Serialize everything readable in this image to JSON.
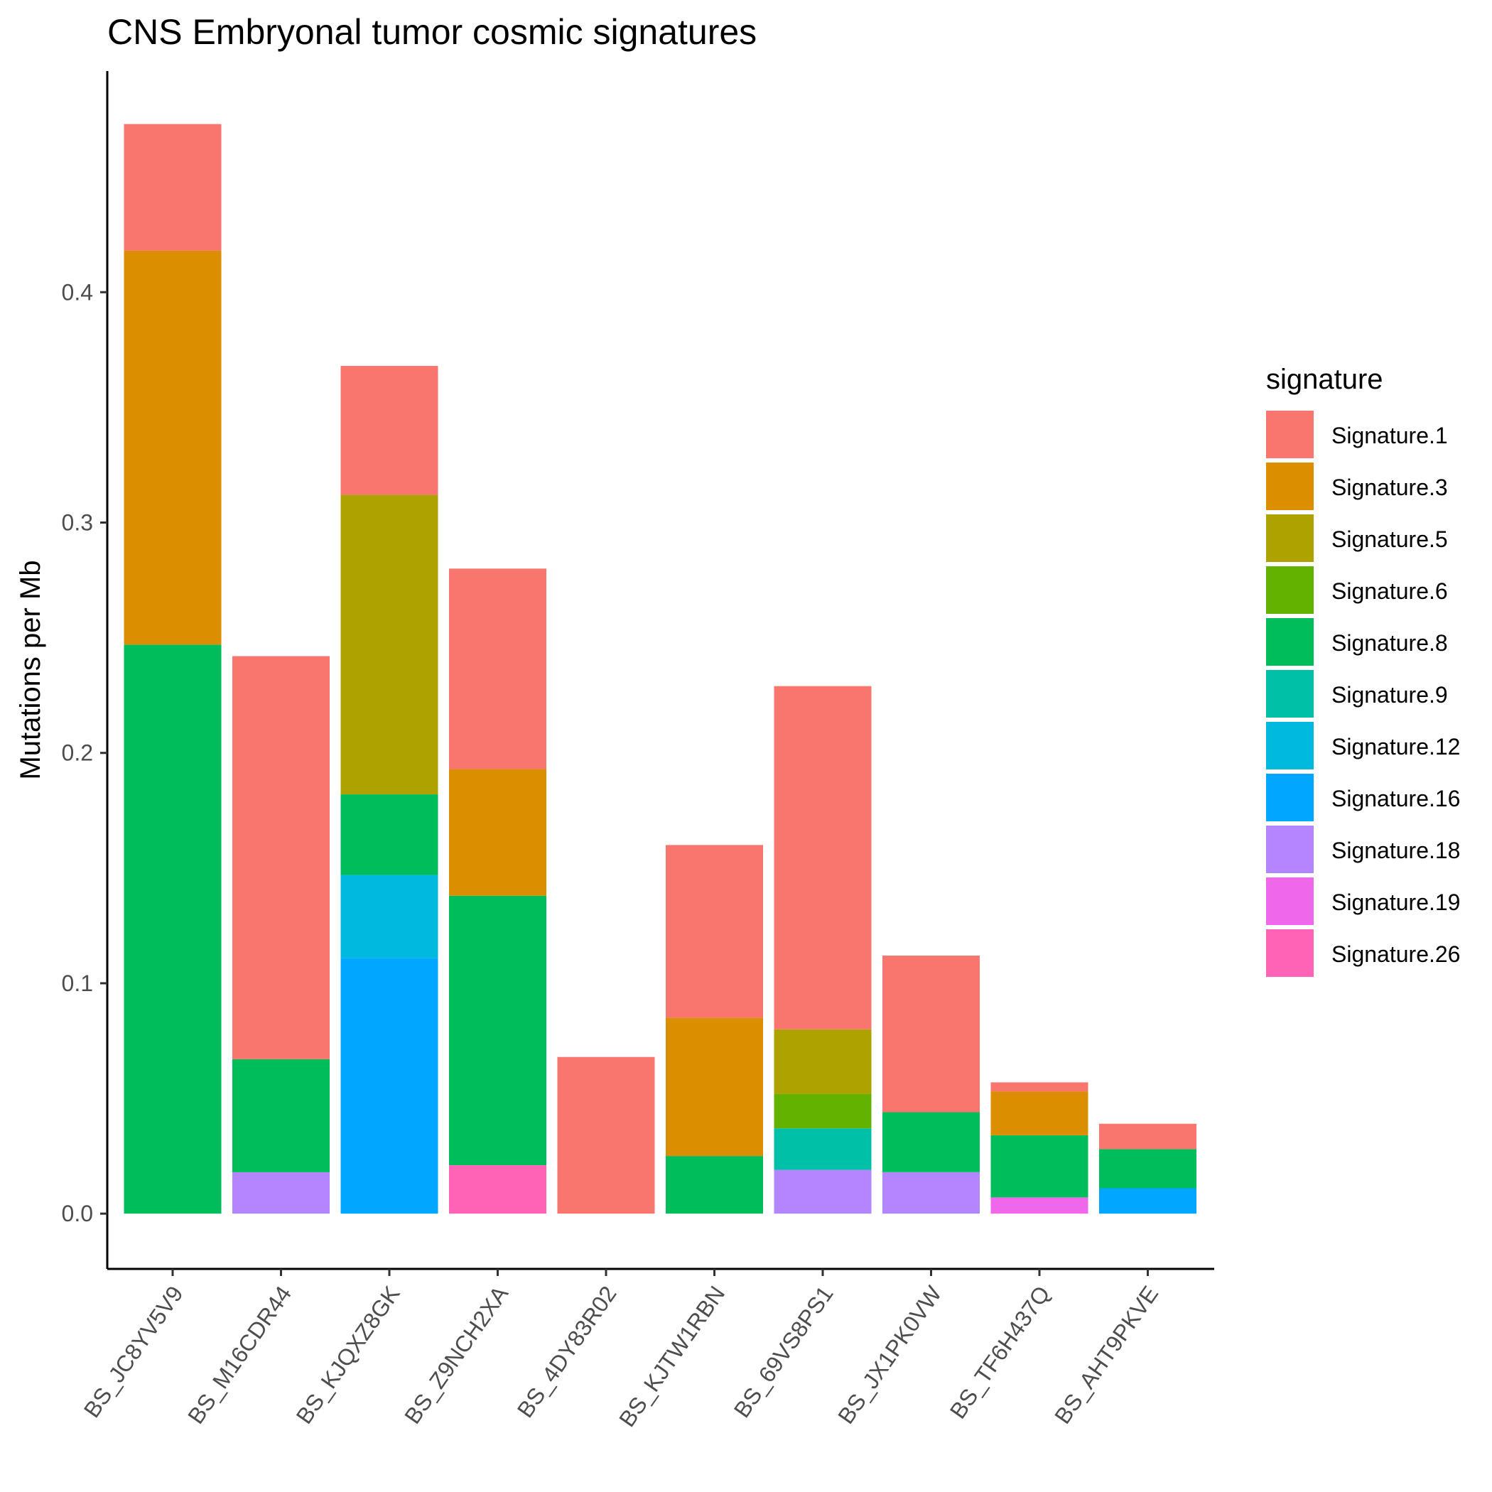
{
  "chart_data": {
    "type": "bar",
    "stacked": true,
    "title": "CNS Embryonal tumor cosmic signatures",
    "xlabel": "",
    "ylabel": "Mutations per Mb",
    "ylim": [
      -0.024,
      0.496
    ],
    "yticks": [
      "0.0",
      "0.1",
      "0.2",
      "0.3",
      "0.4"
    ],
    "ytick_values": [
      0.0,
      0.1,
      0.2,
      0.3,
      0.4
    ],
    "grid": false,
    "legend": {
      "title": "signature",
      "position": "right"
    },
    "categories": [
      "BS_JC8YV5V9",
      "BS_M16CDR44",
      "BS_KJQXZ8GK",
      "BS_Z9NCH2XA",
      "BS_4DY83R02",
      "BS_KJTW1RBN",
      "BS_69VS8PS1",
      "BS_JX1PK0VW",
      "BS_TF6H437Q",
      "BS_AHT9PKVE"
    ],
    "stack_order": [
      "Signature.19",
      "Signature.18",
      "Signature.26",
      "Signature.16",
      "Signature.12",
      "Signature.9",
      "Signature.6",
      "Signature.8",
      "Signature.5",
      "Signature.3",
      "Signature.1"
    ],
    "series": [
      {
        "name": "Signature.1",
        "color": "#F8766D",
        "values": [
          0.055,
          0.175,
          0.056,
          0.087,
          0.068,
          0.075,
          0.149,
          0.068,
          0.004,
          0.011
        ]
      },
      {
        "name": "Signature.3",
        "color": "#DB8E00",
        "values": [
          0.171,
          0,
          0,
          0.055,
          0,
          0.06,
          0,
          0,
          0.019,
          0
        ]
      },
      {
        "name": "Signature.5",
        "color": "#AEA200",
        "values": [
          0,
          0,
          0.13,
          0,
          0,
          0,
          0.028,
          0,
          0,
          0
        ]
      },
      {
        "name": "Signature.6",
        "color": "#64B200",
        "values": [
          0,
          0,
          0,
          0,
          0,
          0,
          0.015,
          0,
          0,
          0
        ]
      },
      {
        "name": "Signature.8",
        "color": "#00BD5C",
        "values": [
          0.247,
          0.049,
          0.035,
          0.117,
          0,
          0.025,
          0,
          0.026,
          0.027,
          0.017
        ]
      },
      {
        "name": "Signature.9",
        "color": "#00C1A7",
        "values": [
          0,
          0,
          0,
          0,
          0,
          0,
          0.018,
          0,
          0,
          0
        ]
      },
      {
        "name": "Signature.12",
        "color": "#00BADE",
        "values": [
          0,
          0,
          0.036,
          0,
          0,
          0,
          0,
          0,
          0,
          0
        ]
      },
      {
        "name": "Signature.16",
        "color": "#00A6FF",
        "values": [
          0,
          0,
          0.111,
          0,
          0,
          0,
          0,
          0,
          0,
          0.011
        ]
      },
      {
        "name": "Signature.18",
        "color": "#B385FF",
        "values": [
          0,
          0.018,
          0,
          0,
          0,
          0,
          0.019,
          0.018,
          0,
          0
        ]
      },
      {
        "name": "Signature.19",
        "color": "#EF67EB",
        "values": [
          0,
          0,
          0,
          0,
          0,
          0,
          0,
          0,
          0.007,
          0
        ]
      },
      {
        "name": "Signature.26",
        "color": "#FF63B6",
        "values": [
          0,
          0,
          0,
          0.021,
          0,
          0,
          0,
          0,
          0,
          0
        ]
      }
    ]
  }
}
